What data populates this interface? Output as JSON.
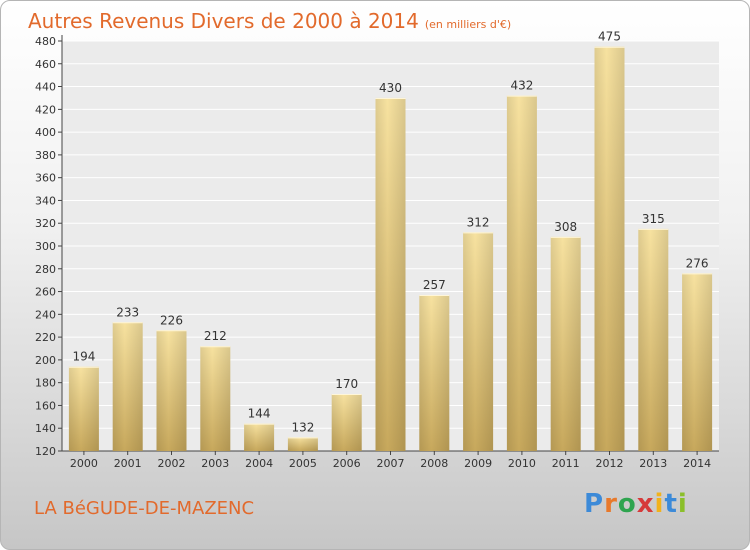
{
  "header": {
    "title": "Autres Revenus Divers de 2000 à 2014",
    "subtitle": "(en milliers d'€)"
  },
  "footer": {
    "commune": "LA BéGUDE-DE-MAZENC",
    "logo_letters": [
      "P",
      "r",
      "o",
      "x",
      "i",
      "t",
      "i"
    ]
  },
  "colors": {
    "title": "#e26a2c",
    "bar_light": "#f7e2a0",
    "bar_dark": "#c7a85c"
  },
  "chart_data": {
    "type": "bar",
    "title": "Autres Revenus Divers de 2000 à 2014",
    "subtitle": "(en milliers d'€)",
    "categories": [
      "2000",
      "2001",
      "2002",
      "2003",
      "2004",
      "2005",
      "2006",
      "2007",
      "2008",
      "2009",
      "2010",
      "2011",
      "2012",
      "2013",
      "2014"
    ],
    "values": [
      194,
      233,
      226,
      212,
      144,
      132,
      170,
      430,
      257,
      312,
      432,
      308,
      475,
      315,
      276
    ],
    "ylim": [
      120,
      480
    ],
    "yticks": [
      120,
      140,
      160,
      180,
      200,
      220,
      240,
      260,
      280,
      300,
      320,
      340,
      360,
      380,
      400,
      420,
      440,
      460,
      480
    ],
    "grid": true,
    "legend": "none"
  }
}
